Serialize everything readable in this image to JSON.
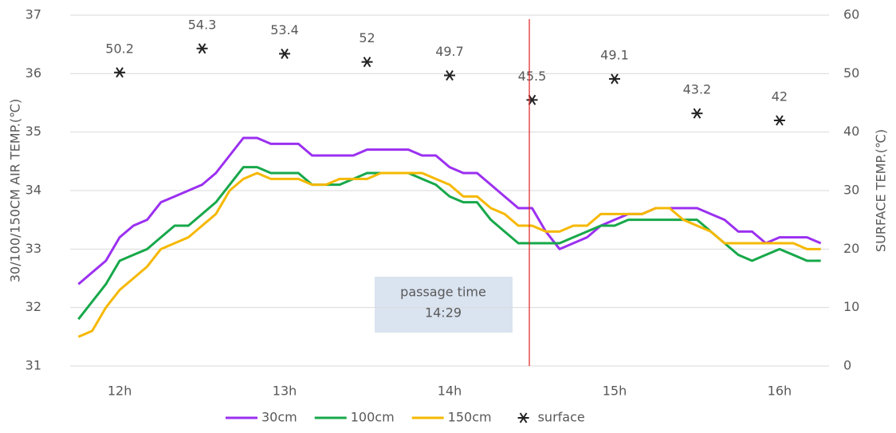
{
  "chart_data": {
    "type": "line",
    "ylabel": "30/100/150CM AIR TEMP.(℃)",
    "y2label": "SURFACE TEMP.(℃)",
    "x": [
      705,
      710,
      715,
      720,
      725,
      730,
      735,
      740,
      745,
      750,
      755,
      760,
      765,
      770,
      775,
      780,
      785,
      790,
      795,
      800,
      805,
      810,
      815,
      820,
      825,
      830,
      835,
      840,
      845,
      850,
      855,
      860,
      865,
      870,
      875,
      880,
      885,
      890,
      895,
      900,
      905,
      910,
      915,
      920,
      925,
      930,
      935,
      940,
      945,
      950,
      955,
      960,
      965,
      970,
      975
    ],
    "xlim": [
      702,
      978
    ],
    "xticks": [
      {
        "value": 720,
        "label": "12h"
      },
      {
        "value": 780,
        "label": "13h"
      },
      {
        "value": 840,
        "label": "14h"
      },
      {
        "value": 900,
        "label": "15h"
      },
      {
        "value": 960,
        "label": "16h"
      }
    ],
    "ylim": [
      31,
      37
    ],
    "yticks": [
      31,
      32,
      33,
      34,
      35,
      36,
      37
    ],
    "y2lim": [
      0,
      60
    ],
    "y2ticks": [
      0,
      10,
      20,
      30,
      40,
      50,
      60
    ],
    "grid": true,
    "legend": "bottom",
    "series": [
      {
        "name": "30cm",
        "color": "#9b30f0",
        "values": [
          32.4,
          32.6,
          32.8,
          33.2,
          33.4,
          33.5,
          33.8,
          33.9,
          34.0,
          34.1,
          34.3,
          34.6,
          34.9,
          34.9,
          34.8,
          34.8,
          34.8,
          34.6,
          34.6,
          34.6,
          34.6,
          34.7,
          34.7,
          34.7,
          34.7,
          34.6,
          34.6,
          34.4,
          34.3,
          34.3,
          34.1,
          33.9,
          33.7,
          33.7,
          33.3,
          33.0,
          33.1,
          33.2,
          33.4,
          33.5,
          33.6,
          33.6,
          33.7,
          33.7,
          33.7,
          33.7,
          33.6,
          33.5,
          33.3,
          33.3,
          33.1,
          33.2,
          33.2,
          33.2,
          33.1
        ]
      },
      {
        "name": "100cm",
        "color": "#17a84a",
        "values": [
          31.8,
          32.1,
          32.4,
          32.8,
          32.9,
          33.0,
          33.2,
          33.4,
          33.4,
          33.6,
          33.8,
          34.1,
          34.4,
          34.4,
          34.3,
          34.3,
          34.3,
          34.1,
          34.1,
          34.1,
          34.2,
          34.3,
          34.3,
          34.3,
          34.3,
          34.2,
          34.1,
          33.9,
          33.8,
          33.8,
          33.5,
          33.3,
          33.1,
          33.1,
          33.1,
          33.1,
          33.2,
          33.3,
          33.4,
          33.4,
          33.5,
          33.5,
          33.5,
          33.5,
          33.5,
          33.5,
          33.3,
          33.1,
          32.9,
          32.8,
          32.9,
          33.0,
          32.9,
          32.8,
          32.8
        ]
      },
      {
        "name": "150cm",
        "color": "#f5b800",
        "values": [
          31.5,
          31.6,
          32.0,
          32.3,
          32.5,
          32.7,
          33.0,
          33.1,
          33.2,
          33.4,
          33.6,
          34.0,
          34.2,
          34.3,
          34.2,
          34.2,
          34.2,
          34.1,
          34.1,
          34.2,
          34.2,
          34.2,
          34.3,
          34.3,
          34.3,
          34.3,
          34.2,
          34.1,
          33.9,
          33.9,
          33.7,
          33.6,
          33.4,
          33.4,
          33.3,
          33.3,
          33.4,
          33.4,
          33.6,
          33.6,
          33.6,
          33.6,
          33.7,
          33.7,
          33.5,
          33.4,
          33.3,
          33.1,
          33.1,
          33.1,
          33.1,
          33.1,
          33.1,
          33.0,
          33.0
        ]
      },
      {
        "name": "surface",
        "type": "scatter",
        "axis": "y2",
        "marker": "asterisk",
        "color": "#222222",
        "x": [
          720,
          750,
          780,
          810,
          840,
          870,
          900,
          930,
          960
        ],
        "values": [
          50.2,
          54.3,
          53.4,
          52,
          49.7,
          45.5,
          49.1,
          43.2,
          42
        ]
      }
    ],
    "vline": {
      "x": 869,
      "color": "#e02020",
      "label": [
        "passage time",
        "14:29"
      ]
    }
  }
}
